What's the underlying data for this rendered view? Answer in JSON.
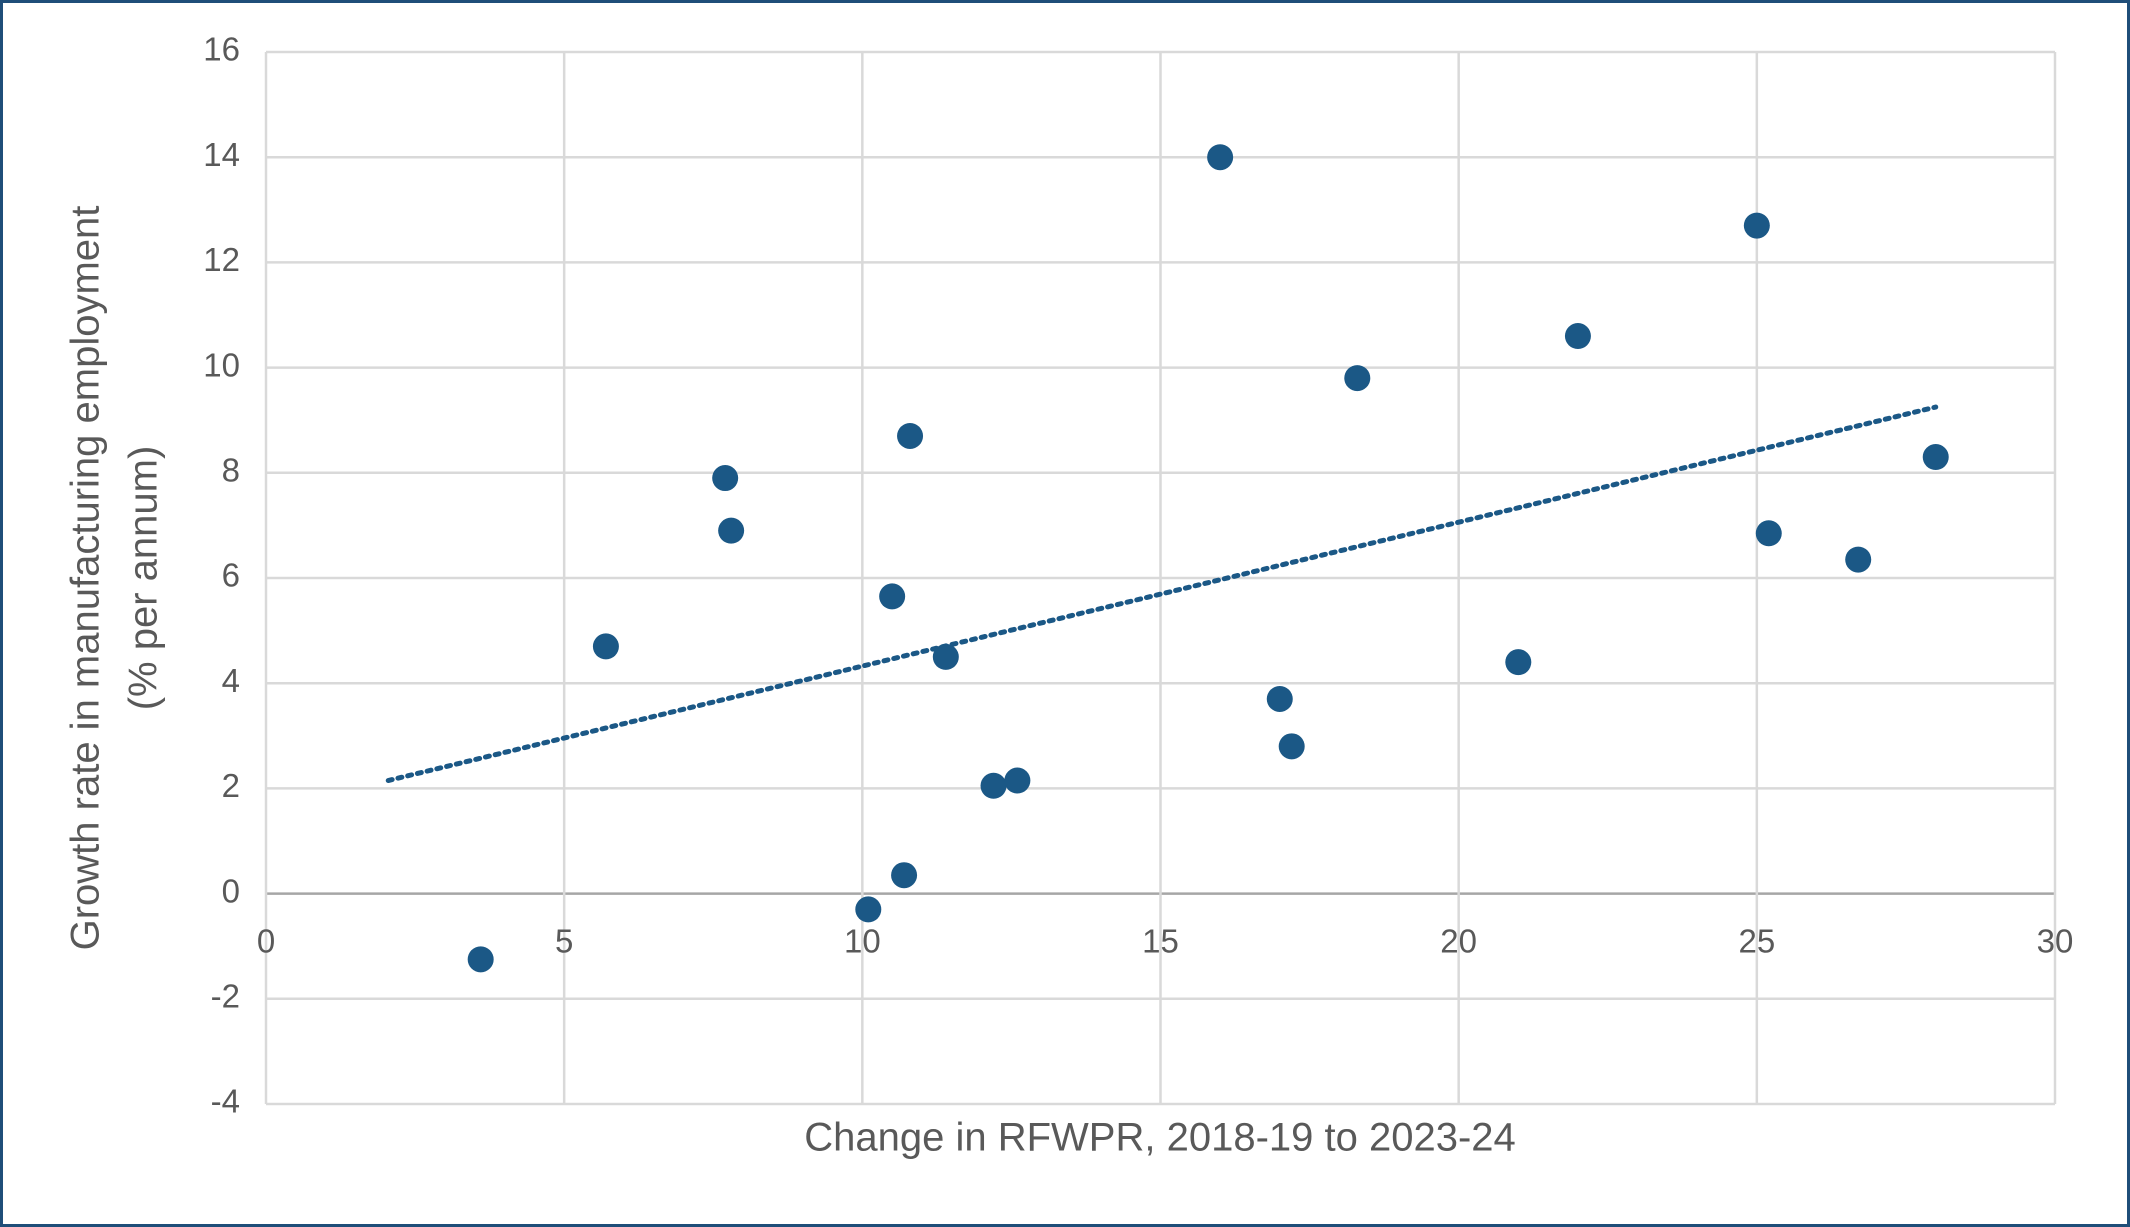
{
  "chart_data": {
    "type": "scatter",
    "xlabel": "Change in RFWPR, 2018-19 to 2023-24",
    "ylabel": [
      "Growth rate in manufacturing employment",
      "(% per annum)"
    ],
    "xlim": [
      0,
      30
    ],
    "xticks": [
      0,
      5,
      10,
      15,
      20,
      25,
      30
    ],
    "ylim": [
      -4,
      16
    ],
    "yticks": [
      -4,
      -2,
      0,
      2,
      4,
      6,
      8,
      10,
      12,
      14,
      16
    ],
    "grid": true,
    "color": "#1b5886",
    "x": [
      3.6,
      5.7,
      7.7,
      7.8,
      10.1,
      10.5,
      10.7,
      10.8,
      11.4,
      12.2,
      12.6,
      16.0,
      17.0,
      17.2,
      18.3,
      21.0,
      22.0,
      25.0,
      25.2,
      26.7,
      28.0
    ],
    "values": [
      -1.25,
      4.7,
      7.9,
      6.9,
      -0.3,
      5.65,
      0.35,
      8.7,
      4.5,
      2.05,
      2.15,
      14.0,
      3.7,
      2.8,
      9.8,
      4.4,
      10.6,
      12.7,
      6.85,
      6.35,
      8.3
    ],
    "trendline": {
      "x": [
        2.05,
        28.0
      ],
      "values": [
        2.15,
        9.25
      ]
    }
  }
}
